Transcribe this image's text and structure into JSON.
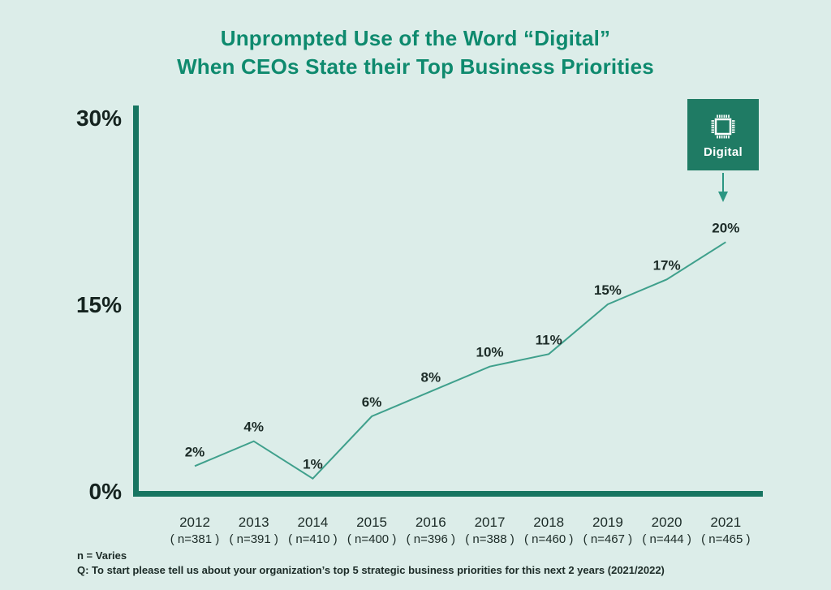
{
  "title": {
    "line1": "Unprompted Use of the Word “Digital”",
    "line2": "When CEOs State their Top Business Priorities"
  },
  "badge": {
    "label": "Digital",
    "icon": "chip-icon"
  },
  "annotation": {
    "arrow": "down-arrow from Digital badge to 2021 data label"
  },
  "footnotes": {
    "line1": "n = Varies",
    "line2": "Q: To start please tell us about your organization’s top 5 strategic business priorities for this next 2 years (2021/2022)"
  },
  "colors": {
    "background": "#dcede9",
    "title_text": "#0e8a6e",
    "axis": "#177561",
    "line": "#3fa08c",
    "badge_background": "#1f7b64",
    "badge_text": "#ffffff",
    "arrow": "#2b9682",
    "label_text": "#1c2b27"
  },
  "chart_data": {
    "type": "line",
    "title": "Unprompted Use of the Word “Digital” When CEOs State their Top Business Priorities",
    "categories": [
      "2012",
      "2013",
      "2014",
      "2015",
      "2016",
      "2017",
      "2018",
      "2019",
      "2020",
      "2021"
    ],
    "n_labels": [
      "( n=381 )",
      "( n=391 )",
      "( n=410 )",
      "( n=400 )",
      "( n=396 )",
      "( n=388 )",
      "( n=460 )",
      "( n=467 )",
      "( n=444 )",
      "( n=465 )"
    ],
    "values": [
      2,
      4,
      1,
      6,
      8,
      10,
      11,
      15,
      17,
      20
    ],
    "unit": "%",
    "xlabel": "",
    "ylabel": "",
    "ylim": [
      0,
      30
    ],
    "yticks": [
      {
        "value": 30,
        "label": "30%"
      },
      {
        "value": 15,
        "label": "15%"
      },
      {
        "value": 0,
        "label": "0%"
      }
    ],
    "grid": false,
    "legend": "none",
    "markers": false
  }
}
